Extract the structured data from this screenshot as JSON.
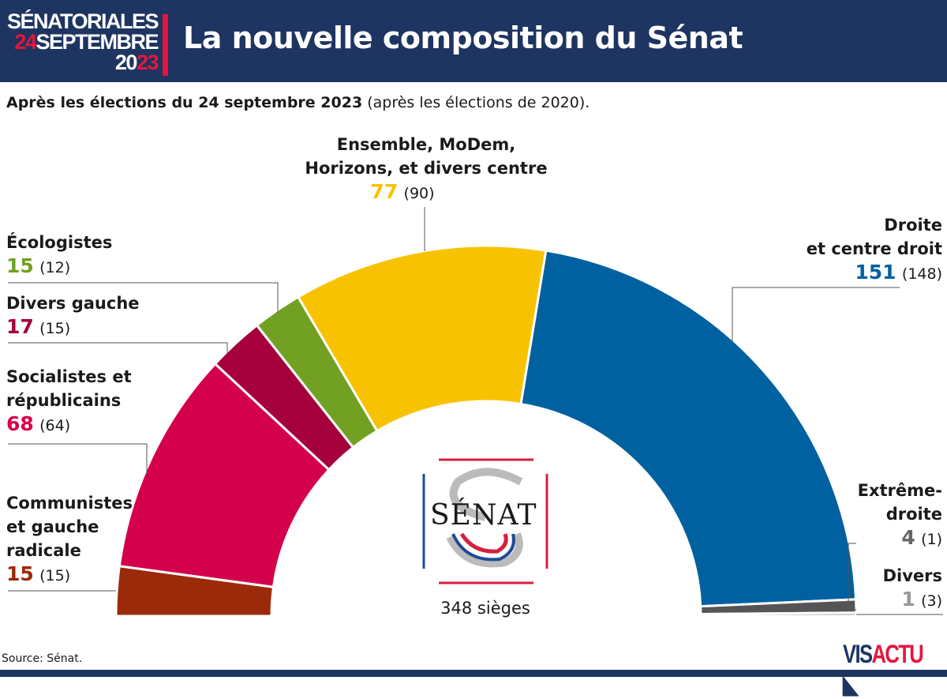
{
  "header": {
    "brand_line1": "SÉNATORIALES",
    "brand_line2_red": "24",
    "brand_line2": "SEPTEMBRE",
    "brand_line3_a": "20",
    "brand_line3_red": "23",
    "title": "La nouvelle composition du Sénat"
  },
  "subtitle": {
    "bold": "Après les élections du 24 septembre 2023",
    "normal": " (après les élections de 2020)."
  },
  "center": {
    "logo_text": "SÉNAT",
    "total": "348 sièges"
  },
  "source": "Source: Sénat.",
  "brand_footer": {
    "vis": "VIS",
    "actu": "ACTU"
  },
  "chart_data": {
    "type": "pie",
    "subtype": "hemicycle",
    "total_seats": 348,
    "series": [
      {
        "name": "Communistes et gauche radicale",
        "value": 15,
        "previous": 15,
        "color": "#9b2a0a"
      },
      {
        "name": "Socialistes et républicains",
        "value": 68,
        "previous": 64,
        "color": "#d4004c"
      },
      {
        "name": "Divers gauche",
        "value": 17,
        "previous": 15,
        "color": "#a5003c"
      },
      {
        "name": "Écologistes",
        "value": 15,
        "previous": 12,
        "color": "#72a022"
      },
      {
        "name": "Ensemble, MoDem, Horizons, et divers centre",
        "value": 77,
        "previous": 90,
        "color": "#f7c300"
      },
      {
        "name": "Droite et centre droit",
        "value": 151,
        "previous": 148,
        "color": "#0061a0"
      },
      {
        "name": "Extrême-droite",
        "value": 4,
        "previous": 1,
        "color": "#555555"
      },
      {
        "name": "Divers",
        "value": 1,
        "previous": 3,
        "color": "#aaaaaa"
      }
    ]
  }
}
